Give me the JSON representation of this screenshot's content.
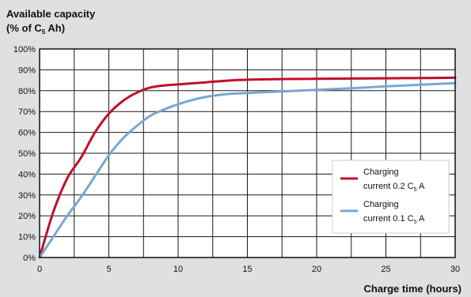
{
  "chart_data": {
    "type": "line",
    "ylabel_line1": "Available capacity",
    "ylabel_line2": {
      "before": "(% of C",
      "sub": "5",
      "after": "  Ah)"
    },
    "xlabel": "Charge time (hours)",
    "xlim": [
      0,
      30
    ],
    "ylim": [
      0,
      100
    ],
    "x_ticks": [
      0,
      5,
      10,
      15,
      20,
      25,
      30
    ],
    "x_tick_labels": [
      "0",
      "5",
      "10",
      "15",
      "20",
      "25",
      "30"
    ],
    "y_ticks": [
      0,
      10,
      20,
      30,
      40,
      50,
      60,
      70,
      80,
      90,
      100
    ],
    "y_tick_labels": [
      "0%",
      "10%",
      "20%",
      "30%",
      "40%",
      "50%",
      "60%",
      "70%",
      "80%",
      "90%",
      "100%"
    ],
    "x_grid": [
      0,
      2.5,
      5,
      7.5,
      10,
      12.5,
      15,
      17.5,
      20,
      22.5,
      25,
      27.5,
      30
    ],
    "grid": true,
    "legend_position": "right",
    "series": [
      {
        "legend_line1": "Charging",
        "legend_line2": {
          "before": "current 0.2 C",
          "sub": "5",
          "after": " A"
        },
        "color": "#c0102a",
        "x": [
          0,
          1,
          2,
          3,
          4,
          5,
          6,
          7,
          8,
          9,
          10,
          12,
          14,
          16,
          18,
          20,
          22,
          24,
          26,
          28,
          30
        ],
        "y": [
          0,
          22,
          38,
          48,
          60,
          69,
          75,
          79,
          81.5,
          82.5,
          83,
          84,
          85,
          85.4,
          85.6,
          85.7,
          85.8,
          85.9,
          86.0,
          86.1,
          86.2
        ]
      },
      {
        "legend_line1": "Charging",
        "legend_line2": {
          "before": "current 0.1 C",
          "sub": "5",
          "after": " A"
        },
        "color": "#7aa6d2",
        "x": [
          0,
          1,
          2,
          3,
          4,
          5,
          6,
          7,
          8,
          9,
          10,
          11,
          12,
          13,
          14,
          16,
          18,
          20,
          22,
          24,
          26,
          28,
          30
        ],
        "y": [
          0,
          10,
          20,
          29,
          39,
          49,
          57,
          63,
          68,
          71,
          73.5,
          75.5,
          77,
          78,
          78.6,
          79.2,
          79.8,
          80.4,
          81.0,
          81.7,
          82.4,
          83.0,
          83.6
        ]
      }
    ]
  }
}
